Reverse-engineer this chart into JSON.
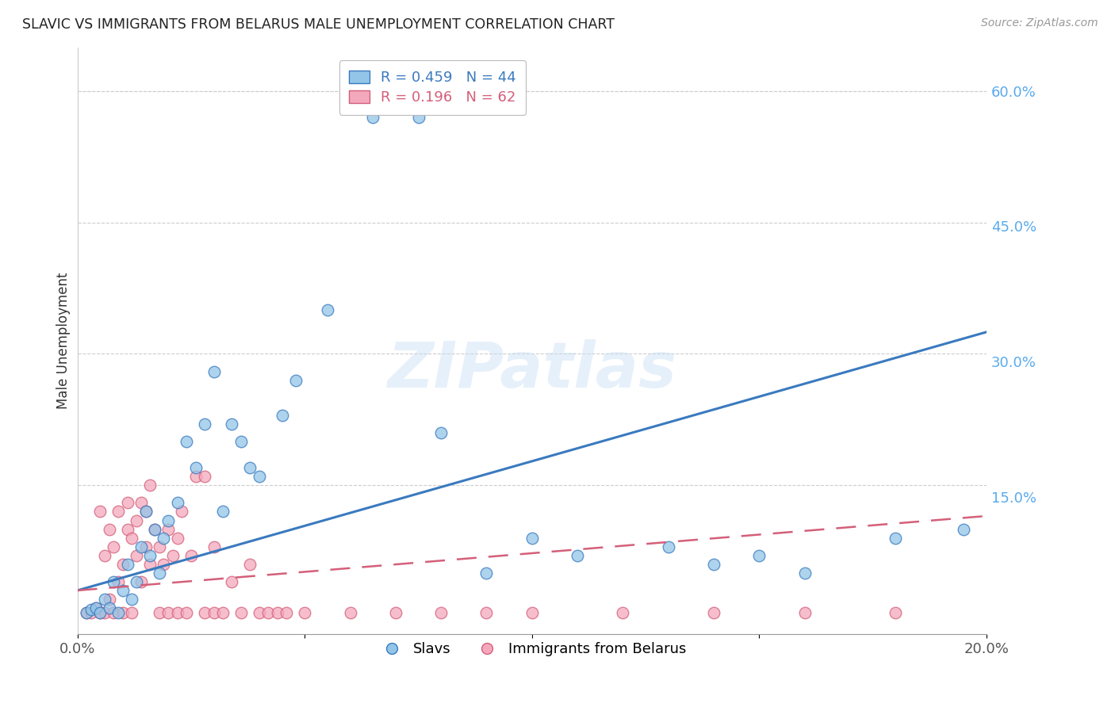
{
  "title": "SLAVIC VS IMMIGRANTS FROM BELARUS MALE UNEMPLOYMENT CORRELATION CHART",
  "source": "Source: ZipAtlas.com",
  "ylabel": "Male Unemployment",
  "xlim": [
    0.0,
    0.2
  ],
  "ylim": [
    -0.02,
    0.65
  ],
  "xticks": [
    0.0,
    0.05,
    0.1,
    0.15,
    0.2
  ],
  "xtick_labels": [
    "0.0%",
    "",
    "",
    "",
    "20.0%"
  ],
  "ytick_vals": [
    0.0,
    0.15,
    0.3,
    0.45,
    0.6
  ],
  "ytick_labels": [
    "",
    "15.0%",
    "30.0%",
    "45.0%",
    "60.0%"
  ],
  "legend_labels": [
    "Slavs",
    "Immigrants from Belarus"
  ],
  "blue_R": 0.459,
  "blue_N": 44,
  "pink_R": 0.196,
  "pink_N": 62,
  "blue_color": "#92c5e8",
  "pink_color": "#f4a8bc",
  "trend_blue": "#3a7abf",
  "trend_pink": "#d45f7a",
  "watermark": "ZIPatlas",
  "blue_scatter": [
    [
      0.002,
      0.005
    ],
    [
      0.003,
      0.008
    ],
    [
      0.004,
      0.01
    ],
    [
      0.005,
      0.005
    ],
    [
      0.006,
      0.02
    ],
    [
      0.007,
      0.01
    ],
    [
      0.008,
      0.04
    ],
    [
      0.009,
      0.005
    ],
    [
      0.01,
      0.03
    ],
    [
      0.011,
      0.06
    ],
    [
      0.012,
      0.02
    ],
    [
      0.013,
      0.04
    ],
    [
      0.014,
      0.08
    ],
    [
      0.015,
      0.12
    ],
    [
      0.016,
      0.07
    ],
    [
      0.017,
      0.1
    ],
    [
      0.018,
      0.05
    ],
    [
      0.019,
      0.09
    ],
    [
      0.02,
      0.11
    ],
    [
      0.022,
      0.13
    ],
    [
      0.024,
      0.2
    ],
    [
      0.026,
      0.17
    ],
    [
      0.028,
      0.22
    ],
    [
      0.03,
      0.28
    ],
    [
      0.032,
      0.12
    ],
    [
      0.034,
      0.22
    ],
    [
      0.036,
      0.2
    ],
    [
      0.038,
      0.17
    ],
    [
      0.04,
      0.16
    ],
    [
      0.045,
      0.23
    ],
    [
      0.048,
      0.27
    ],
    [
      0.055,
      0.35
    ],
    [
      0.065,
      0.57
    ],
    [
      0.075,
      0.57
    ],
    [
      0.08,
      0.21
    ],
    [
      0.09,
      0.05
    ],
    [
      0.1,
      0.09
    ],
    [
      0.11,
      0.07
    ],
    [
      0.13,
      0.08
    ],
    [
      0.14,
      0.06
    ],
    [
      0.15,
      0.07
    ],
    [
      0.16,
      0.05
    ],
    [
      0.18,
      0.09
    ],
    [
      0.195,
      0.1
    ]
  ],
  "pink_scatter": [
    [
      0.002,
      0.005
    ],
    [
      0.003,
      0.005
    ],
    [
      0.004,
      0.01
    ],
    [
      0.005,
      0.005
    ],
    [
      0.005,
      0.12
    ],
    [
      0.006,
      0.005
    ],
    [
      0.006,
      0.07
    ],
    [
      0.007,
      0.02
    ],
    [
      0.007,
      0.1
    ],
    [
      0.008,
      0.005
    ],
    [
      0.008,
      0.08
    ],
    [
      0.009,
      0.04
    ],
    [
      0.009,
      0.12
    ],
    [
      0.01,
      0.005
    ],
    [
      0.01,
      0.06
    ],
    [
      0.011,
      0.1
    ],
    [
      0.011,
      0.13
    ],
    [
      0.012,
      0.005
    ],
    [
      0.012,
      0.09
    ],
    [
      0.013,
      0.07
    ],
    [
      0.013,
      0.11
    ],
    [
      0.014,
      0.04
    ],
    [
      0.014,
      0.13
    ],
    [
      0.015,
      0.08
    ],
    [
      0.015,
      0.12
    ],
    [
      0.016,
      0.06
    ],
    [
      0.016,
      0.15
    ],
    [
      0.017,
      0.1
    ],
    [
      0.018,
      0.005
    ],
    [
      0.018,
      0.08
    ],
    [
      0.019,
      0.06
    ],
    [
      0.02,
      0.005
    ],
    [
      0.02,
      0.1
    ],
    [
      0.021,
      0.07
    ],
    [
      0.022,
      0.005
    ],
    [
      0.022,
      0.09
    ],
    [
      0.023,
      0.12
    ],
    [
      0.024,
      0.005
    ],
    [
      0.025,
      0.07
    ],
    [
      0.026,
      0.16
    ],
    [
      0.028,
      0.005
    ],
    [
      0.028,
      0.16
    ],
    [
      0.03,
      0.005
    ],
    [
      0.03,
      0.08
    ],
    [
      0.032,
      0.005
    ],
    [
      0.034,
      0.04
    ],
    [
      0.036,
      0.005
    ],
    [
      0.038,
      0.06
    ],
    [
      0.04,
      0.005
    ],
    [
      0.042,
      0.005
    ],
    [
      0.044,
      0.005
    ],
    [
      0.046,
      0.005
    ],
    [
      0.05,
      0.005
    ],
    [
      0.06,
      0.005
    ],
    [
      0.07,
      0.005
    ],
    [
      0.08,
      0.005
    ],
    [
      0.09,
      0.005
    ],
    [
      0.1,
      0.005
    ],
    [
      0.12,
      0.005
    ],
    [
      0.14,
      0.005
    ],
    [
      0.16,
      0.005
    ],
    [
      0.18,
      0.005
    ]
  ],
  "blue_trend_x": [
    0.0,
    0.2
  ],
  "blue_trend_y": [
    0.03,
    0.325
  ],
  "pink_trend_x": [
    0.0,
    0.2
  ],
  "pink_trend_y": [
    0.03,
    0.115
  ]
}
